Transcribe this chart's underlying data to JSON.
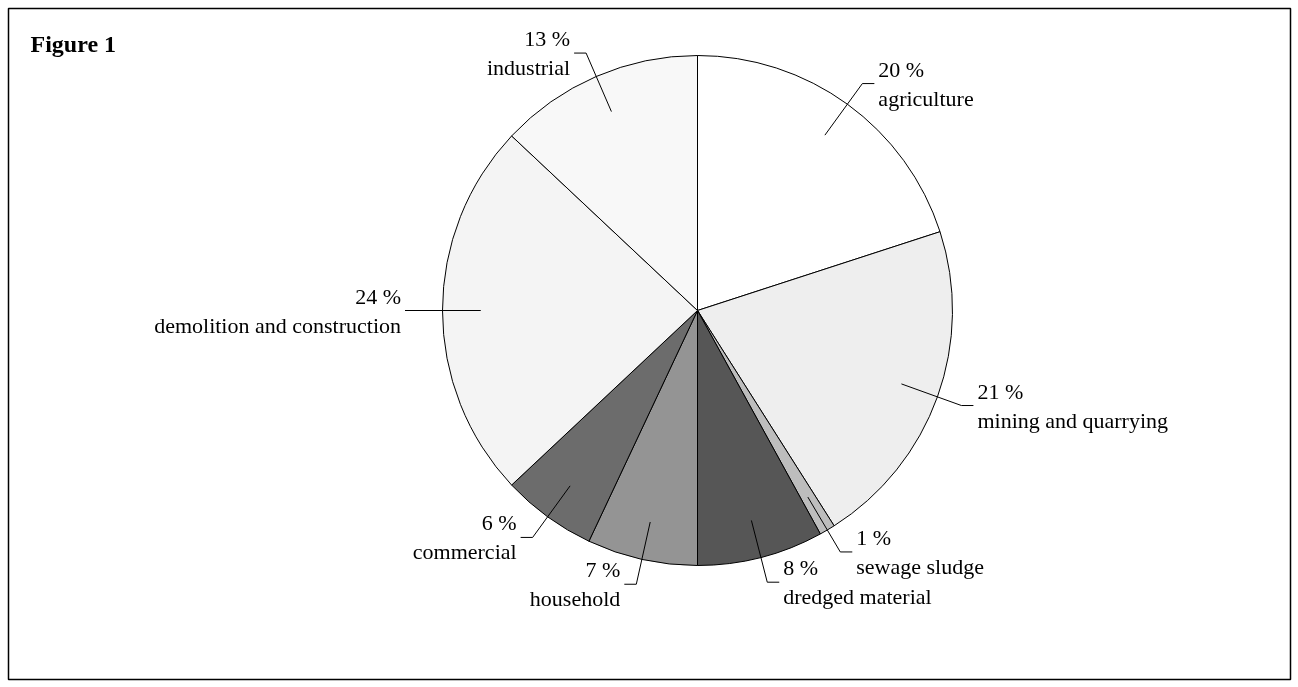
{
  "chart_data": {
    "type": "pie",
    "title": "Figure 1",
    "categories": [
      "agriculture",
      "mining and quarrying",
      "sewage sludge",
      "dredged material",
      "household",
      "commercial",
      "demolition and construction",
      "industrial"
    ],
    "values": [
      20,
      21,
      1,
      8,
      7,
      6,
      24,
      13
    ],
    "value_labels": [
      "20 %",
      "21 %",
      "1 %",
      "8 %",
      "7 %",
      "6 %",
      "24 %",
      "13 %"
    ],
    "colors": [
      "#ffffff",
      "#eeeeee",
      "#bdbdbd",
      "#565656",
      "#949494",
      "#6c6c6c",
      "#f4f4f4",
      "#f8f8f8"
    ]
  }
}
